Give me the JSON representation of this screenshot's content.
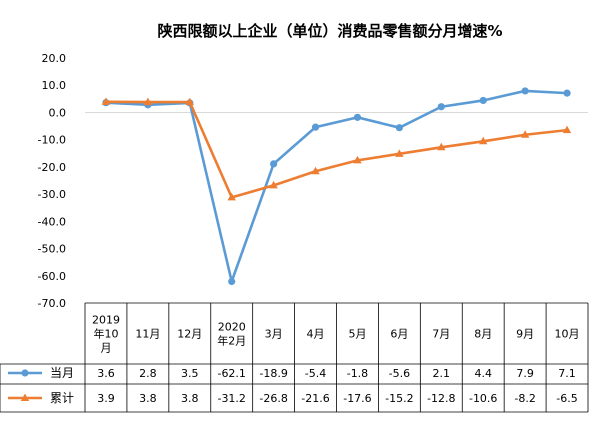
{
  "chart_data": {
    "type": "line",
    "title": "陕西限额以上企业（单位）消费品零售额分月增速%",
    "categories": [
      [
        "2019",
        "年10",
        "月"
      ],
      [
        "11月"
      ],
      [
        "12月"
      ],
      [
        "2020",
        "年2月"
      ],
      [
        "3月"
      ],
      [
        "4月"
      ],
      [
        "5月"
      ],
      [
        "6月"
      ],
      [
        "7月"
      ],
      [
        "8月"
      ],
      [
        "9月"
      ],
      [
        "10月"
      ]
    ],
    "y_ticks": [
      "20.0",
      "10.0",
      "0.0",
      "-10.0",
      "-20.0",
      "-30.0",
      "-40.0",
      "-50.0",
      "-60.0",
      "-70.0"
    ],
    "ylim": [
      -70,
      20
    ],
    "series": [
      {
        "name": "当月",
        "color": "#5B9BD5",
        "marker": "circle",
        "values": [
          3.6,
          2.8,
          3.5,
          -62.1,
          -18.9,
          -5.4,
          -1.8,
          -5.6,
          2.1,
          4.4,
          7.9,
          7.1
        ],
        "labels": [
          "3.6",
          "2.8",
          "3.5",
          "-62.1",
          "-18.9",
          "-5.4",
          "-1.8",
          "-5.6",
          "2.1",
          "4.4",
          "7.9",
          "7.1"
        ]
      },
      {
        "name": "累计",
        "color": "#ED7D31",
        "marker": "triangle",
        "values": [
          3.9,
          3.8,
          3.8,
          -31.2,
          -26.8,
          -21.6,
          -17.6,
          -15.2,
          -12.8,
          -10.6,
          -8.2,
          -6.5
        ],
        "labels": [
          "3.9",
          "3.8",
          "3.8",
          "-31.2",
          "-26.8",
          "-21.6",
          "-17.6",
          "-15.2",
          "-12.8",
          "-10.6",
          "-8.2",
          "-6.5"
        ]
      }
    ],
    "grid": false,
    "legend_placement": "bottom-left data table"
  }
}
